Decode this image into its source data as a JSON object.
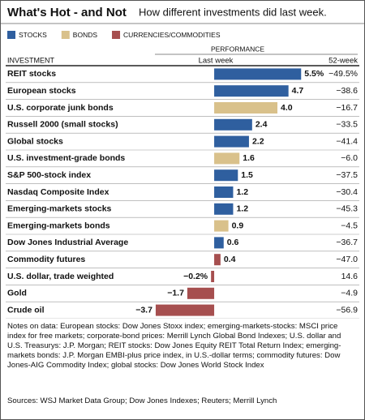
{
  "chart_data": {
    "type": "bar",
    "title": "What's Hot - and Not",
    "subtitle": "How different investments did last week.",
    "performance_header": "PERFORMANCE",
    "category_header": "INVESTMENT",
    "value_header": "Last week",
    "week52_header": "52-week",
    "categories": [
      "REIT stocks",
      "European stocks",
      "U.S. corporate junk bonds",
      "Russell 2000 (small stocks)",
      "Global stocks",
      "U.S. investment-grade bonds",
      "S&P 500-stock index",
      "Nasdaq Composite Index",
      "Emerging-markets stocks",
      "Emerging-markets bonds",
      "Dow Jones Industrial Average",
      "Commodity futures",
      "U.S. dollar, trade weighted",
      "Gold",
      "Crude oil"
    ],
    "series": [
      {
        "name": "STOCKS",
        "color": "#2f5f9f",
        "values": [
          5.5,
          4.7,
          null,
          2.4,
          2.2,
          null,
          1.5,
          1.2,
          1.2,
          null,
          0.6,
          null,
          null,
          null,
          null
        ],
        "value_labels": [
          "5.5%",
          "4.7",
          null,
          "2.4",
          "2.2",
          null,
          "1.5",
          "1.2",
          "1.2",
          null,
          "0.6",
          null,
          null,
          null,
          null
        ]
      },
      {
        "name": "BONDS",
        "color": "#d9c18b",
        "values": [
          null,
          null,
          4.0,
          null,
          null,
          1.6,
          null,
          null,
          null,
          0.9,
          null,
          null,
          null,
          null,
          null
        ],
        "value_labels": [
          null,
          null,
          "4.0",
          null,
          null,
          "1.6",
          null,
          null,
          null,
          "0.9",
          null,
          null,
          null,
          null,
          null
        ]
      },
      {
        "name": "CURRENCIES/COMMODITIES",
        "color": "#a64f4f",
        "values": [
          null,
          null,
          null,
          null,
          null,
          null,
          null,
          null,
          null,
          null,
          null,
          0.4,
          -0.2,
          -1.7,
          -3.7
        ],
        "value_labels": [
          null,
          null,
          null,
          null,
          null,
          null,
          null,
          null,
          null,
          null,
          null,
          "0.4",
          "−0.2%",
          "−1.7",
          "−3.7"
        ]
      }
    ],
    "week52": {
      "values": [
        -49.5,
        -38.6,
        -16.7,
        -33.5,
        -41.4,
        -6.0,
        -37.5,
        -30.4,
        -45.3,
        -4.5,
        -36.7,
        -47.0,
        14.6,
        -4.9,
        -56.9
      ],
      "value_labels": [
        "−49.5%",
        "−38.6",
        "−16.7",
        "−33.5",
        "−41.4",
        "−6.0",
        "−37.5",
        "−30.4",
        "−45.3",
        "−4.5",
        "−36.7",
        "−47.0",
        "14.6",
        "−4.9",
        "−56.9"
      ]
    },
    "xlim": [
      -3.8,
      6
    ],
    "notes": "Notes on data: European stocks: Dow Jones Stoxx index; emerging-markets-stocks: MSCI price index for free markets; corporate-bond prices: Merrill Lynch Global Bond Indexes; U.S. dollar and U.S. Treasurys: J.P. Morgan; REIT stocks: Dow Jones Equity REIT Total Return Index; emerging-markets bonds: J.P. Morgan EMBI-plus price index, in U.S.-dollar terms; commodity futures: Dow Jones-AIG Commodity Index; global stocks: Dow Jones World Stock Index",
    "source": "Sources: WSJ Market Data Group; Dow Jones Indexes; Reuters; Merrill Lynch"
  }
}
